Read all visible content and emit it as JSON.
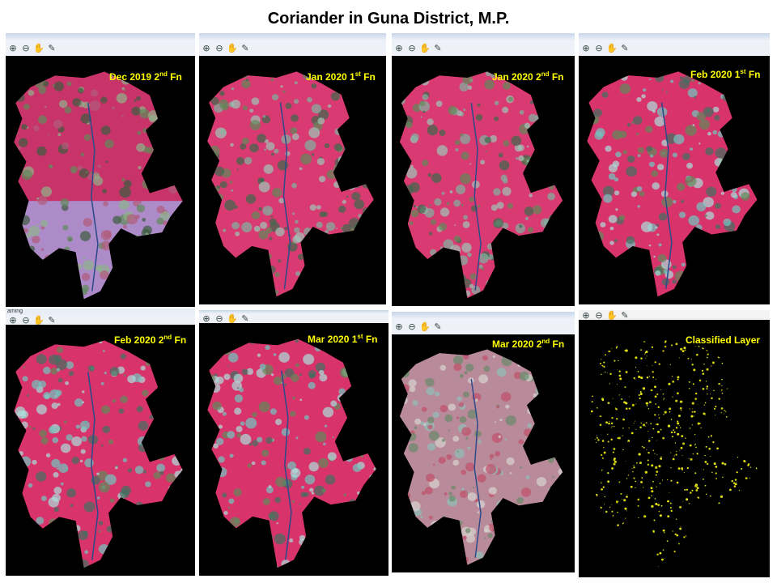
{
  "title": "Coriander in Guna District, M.P.",
  "panels": [
    {
      "label_main": "Dec 2019 2",
      "label_sup": "nd",
      "label_tail": " Fn",
      "scheme": "mixed"
    },
    {
      "label_main": "Jan 2020 1",
      "label_sup": "st",
      "label_tail": " Fn",
      "scheme": "pink"
    },
    {
      "label_main": "Jan 2020 2",
      "label_sup": "nd",
      "label_tail": " Fn",
      "scheme": "pink"
    },
    {
      "label_main": "Feb 2020 1",
      "label_sup": "st",
      "label_tail": " Fn",
      "scheme": "pinkcyan"
    },
    {
      "label_main": "Feb 2020 2",
      "label_sup": "nd",
      "label_tail": " Fn",
      "scheme": "pinkcyan"
    },
    {
      "label_main": "Mar 2020 1",
      "label_sup": "st",
      "label_tail": " Fn",
      "scheme": "pinkcyan"
    },
    {
      "label_main": "Mar 2020 2",
      "label_sup": "nd",
      "label_tail": " Fn",
      "scheme": "faded"
    },
    {
      "label_main": "Classified Layer",
      "label_sup": "",
      "label_tail": "",
      "scheme": "classified"
    }
  ],
  "toolbar_icons": [
    "zoom-in-icon",
    "zoom-out-icon",
    "pan-hand-icon",
    "pick-pin-icon"
  ],
  "stub_text": "aming",
  "colors": {
    "label": "#ffff00",
    "map_pink": "#d9336b",
    "map_green": "#5f8a5a",
    "map_cyan": "#7fd6d0",
    "classified": "#e6e60f"
  }
}
